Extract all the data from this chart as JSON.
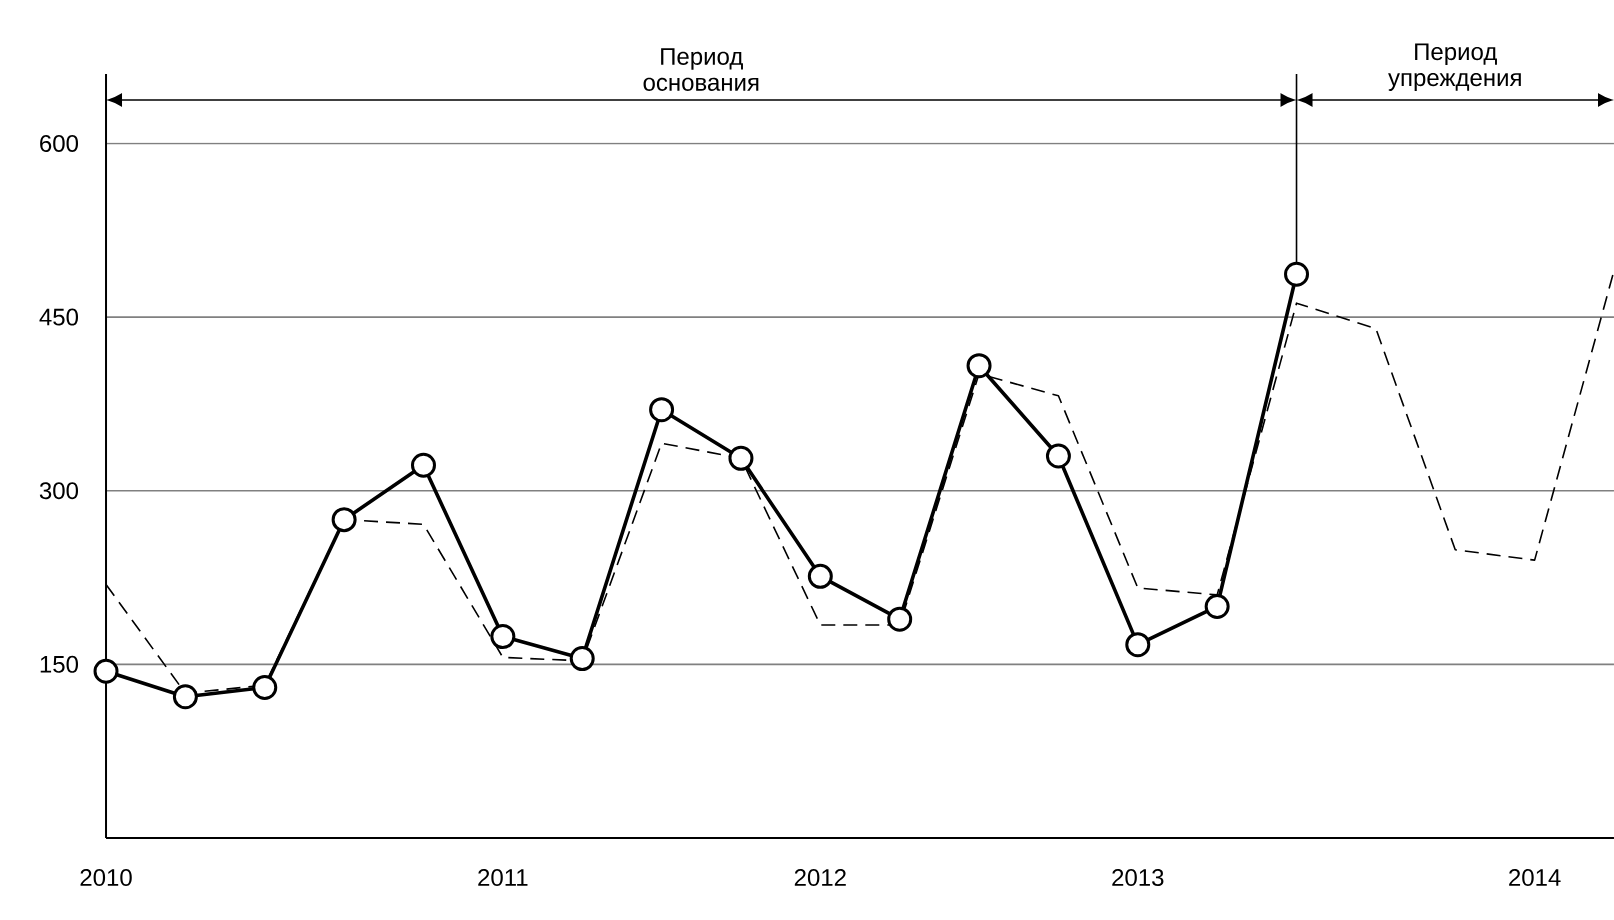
{
  "chart_data": {
    "type": "line",
    "categories": [
      "2010",
      null,
      null,
      null,
      null,
      "2011",
      null,
      null,
      null,
      "2012",
      null,
      null,
      null,
      "2013",
      null,
      null,
      null,
      null,
      "2014",
      null
    ],
    "ylim": [
      0,
      660
    ],
    "yticks": [
      150,
      300,
      450,
      600
    ],
    "grid": "y",
    "series": [
      {
        "color": "#000000",
        "marker": "circle",
        "line_style": "solid",
        "values": [
          144,
          122,
          130,
          275,
          322,
          174,
          155,
          370,
          328,
          226,
          189,
          408,
          330,
          167,
          200,
          487,
          null,
          null,
          null,
          null
        ]
      },
      {
        "color": "#000000",
        "marker": "none",
        "line_style": "dashed",
        "values": [
          219,
          125,
          132,
          275,
          271,
          156,
          153,
          341,
          328,
          184,
          184,
          401,
          382,
          216,
          210,
          462,
          440,
          249,
          240,
          490
        ]
      }
    ],
    "annotations": [
      "Период основания",
      "Период упреждения"
    ]
  }
}
